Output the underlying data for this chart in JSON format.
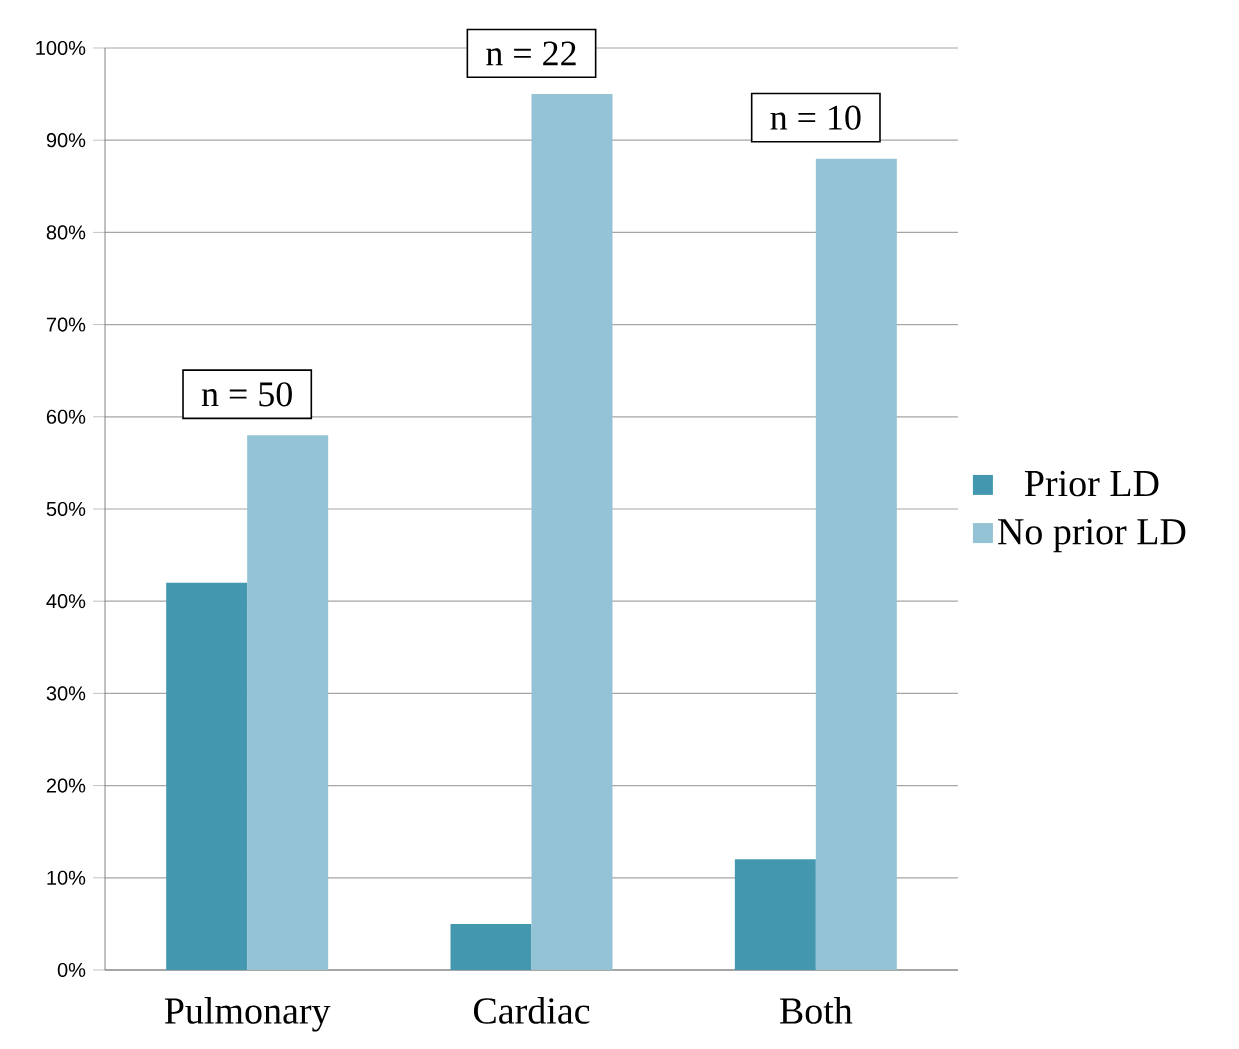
{
  "chart_data": {
    "type": "bar",
    "categories": [
      "Pulmonary",
      "Cardiac",
      "Both"
    ],
    "series": [
      {
        "name": "Prior LD",
        "color": "#4398b0",
        "values": [
          42,
          5,
          12
        ]
      },
      {
        "name": "No prior LD",
        "color": "#93c3d4",
        "values": [
          58,
          95,
          88
        ]
      }
    ],
    "ylim": [
      0,
      100
    ],
    "yticks": [
      {
        "value": 0,
        "label": "0%"
      },
      {
        "value": 10,
        "label": "10%"
      },
      {
        "value": 20,
        "label": "20%"
      },
      {
        "value": 30,
        "label": "30%"
      },
      {
        "value": 40,
        "label": "40%"
      },
      {
        "value": 50,
        "label": "50%"
      },
      {
        "value": 60,
        "label": "60%"
      },
      {
        "value": 70,
        "label": "70%"
      },
      {
        "value": 80,
        "label": "80%"
      },
      {
        "value": 90,
        "label": "90%"
      },
      {
        "value": 100,
        "label": "100%"
      }
    ],
    "grid": "y",
    "legend": "right",
    "annotations": [
      "n = 50",
      "n = 22",
      "n = 10"
    ]
  }
}
